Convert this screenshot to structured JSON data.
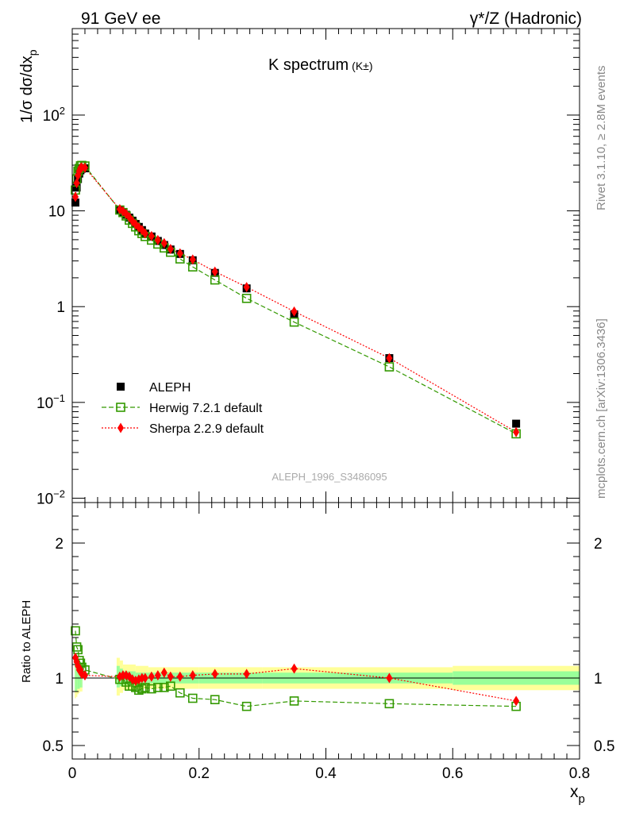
{
  "header": {
    "left": "91 GeV ee",
    "right": "γ*/Z (Hadronic)"
  },
  "title": {
    "main": "K spectrum",
    "sub": "(K±)"
  },
  "y_label_main": "1/σ dσ/dx",
  "y_label_main_sub": "p",
  "y_label_ratio": "Ratio to ALEPH",
  "x_label": "x",
  "x_label_sub": "p",
  "side_label_top": "Rivet 3.1.10, ≥ 2.8M events",
  "side_label_bottom": "mcplots.cern.ch [arXiv:1306.3436]",
  "analysis_tag": "ALEPH_1996_S3486095",
  "legend": [
    {
      "label": "ALEPH",
      "marker": "square-filled",
      "color": "#000000"
    },
    {
      "label": "Herwig 7.2.1 default",
      "marker": "square-open",
      "color": "#339900"
    },
    {
      "label": "Sherpa 2.2.9 default",
      "marker": "diamond-filled",
      "color": "#ff0000"
    }
  ],
  "main_y_ticks": [
    {
      "value": 0.01,
      "label": "10",
      "exp": "−2"
    },
    {
      "value": 0.1,
      "label": "10",
      "exp": "−1"
    },
    {
      "value": 1,
      "label": "1",
      "exp": ""
    },
    {
      "value": 10,
      "label": "10",
      "exp": ""
    },
    {
      "value": 100,
      "label": "10",
      "exp": "2"
    }
  ],
  "ratio_y_ticks": [
    {
      "value": 0.5,
      "label": "0.5"
    },
    {
      "value": 1,
      "label": "1"
    },
    {
      "value": 2,
      "label": "2"
    }
  ],
  "x_ticks": [
    {
      "value": 0,
      "label": "0"
    },
    {
      "value": 0.2,
      "label": "0.2"
    },
    {
      "value": 0.4,
      "label": "0.4"
    },
    {
      "value": 0.6,
      "label": "0.6"
    },
    {
      "value": 0.8,
      "label": "0.8"
    }
  ],
  "chart_data": {
    "type": "scatter",
    "x_scale": "linear",
    "y_scale": "log",
    "xlim": [
      0,
      0.8
    ],
    "ylim": [
      0.009,
      800
    ],
    "ratio_ylim": [
      0.4,
      2.3
    ],
    "colors": {
      "data": "#000000",
      "herwig": "#339900",
      "sherpa": "#ff0000",
      "band_inner": "#99ff99",
      "band_outer": "#ffff99"
    },
    "series": [
      {
        "name": "ALEPH",
        "x": [
          0.005,
          0.007,
          0.009,
          0.011,
          0.013,
          0.015,
          0.02,
          0.075,
          0.08,
          0.085,
          0.09,
          0.095,
          0.1,
          0.105,
          0.11,
          0.115,
          0.125,
          0.135,
          0.145,
          0.155,
          0.17,
          0.19,
          0.225,
          0.275,
          0.35,
          0.5,
          0.7
        ],
        "y": [
          12.2,
          17.5,
          21.5,
          24.5,
          26.5,
          27.5,
          27.8,
          10.3,
          9.7,
          9.1,
          8.5,
          7.9,
          7.3,
          6.8,
          6.3,
          5.8,
          5.4,
          4.85,
          4.4,
          3.95,
          3.55,
          3.05,
          2.25,
          1.55,
          0.83,
          0.29,
          0.06
        ]
      },
      {
        "name": "Herwig 7.2.1 default",
        "x": [
          0.005,
          0.007,
          0.009,
          0.011,
          0.013,
          0.015,
          0.02,
          0.075,
          0.08,
          0.085,
          0.09,
          0.095,
          0.1,
          0.105,
          0.11,
          0.115,
          0.125,
          0.135,
          0.145,
          0.155,
          0.17,
          0.19,
          0.225,
          0.275,
          0.35,
          0.5,
          0.7
        ],
        "y": [
          16.5,
          21.6,
          26.0,
          27.7,
          29.5,
          29.8,
          29.4,
          10.2,
          9.6,
          8.85,
          8.0,
          7.4,
          6.8,
          6.2,
          5.8,
          5.4,
          4.95,
          4.5,
          4.1,
          3.7,
          3.15,
          2.6,
          1.9,
          1.22,
          0.69,
          0.235,
          0.047
        ]
      },
      {
        "name": "Sherpa 2.2.9 default",
        "x": [
          0.005,
          0.007,
          0.009,
          0.011,
          0.013,
          0.015,
          0.02,
          0.075,
          0.08,
          0.085,
          0.09,
          0.095,
          0.1,
          0.105,
          0.11,
          0.115,
          0.125,
          0.135,
          0.145,
          0.155,
          0.17,
          0.19,
          0.225,
          0.275,
          0.35,
          0.5,
          0.7
        ],
        "y": [
          14.0,
          19.5,
          23.4,
          26.0,
          28.0,
          28.4,
          28.2,
          10.4,
          9.9,
          9.3,
          8.6,
          7.8,
          7.2,
          6.7,
          6.3,
          5.8,
          5.45,
          4.95,
          4.6,
          4.0,
          3.6,
          3.1,
          2.32,
          1.6,
          0.89,
          0.29,
          0.049
        ]
      }
    ],
    "ratio": [
      {
        "name": "Herwig 7.2.1 default",
        "x": [
          0.005,
          0.007,
          0.009,
          0.011,
          0.013,
          0.015,
          0.02,
          0.075,
          0.08,
          0.085,
          0.09,
          0.095,
          0.1,
          0.105,
          0.11,
          0.115,
          0.125,
          0.135,
          0.145,
          0.155,
          0.17,
          0.19,
          0.225,
          0.275,
          0.35,
          0.5,
          0.7
        ],
        "y": [
          1.35,
          1.23,
          1.21,
          1.13,
          1.11,
          1.08,
          1.06,
          0.99,
          0.99,
          0.97,
          0.94,
          0.94,
          0.93,
          0.91,
          0.92,
          0.93,
          0.92,
          0.93,
          0.93,
          0.94,
          0.89,
          0.85,
          0.84,
          0.79,
          0.83,
          0.81,
          0.79
        ]
      },
      {
        "name": "Sherpa 2.2.9 default",
        "x": [
          0.005,
          0.007,
          0.009,
          0.011,
          0.013,
          0.015,
          0.02,
          0.075,
          0.08,
          0.085,
          0.09,
          0.095,
          0.1,
          0.105,
          0.11,
          0.115,
          0.125,
          0.135,
          0.145,
          0.155,
          0.17,
          0.19,
          0.225,
          0.275,
          0.35,
          0.5,
          0.7
        ],
        "y": [
          1.15,
          1.12,
          1.09,
          1.06,
          1.06,
          1.03,
          1.02,
          1.01,
          1.02,
          1.02,
          1.01,
          0.99,
          0.98,
          0.99,
          1.0,
          1.0,
          1.01,
          1.02,
          1.04,
          1.01,
          1.01,
          1.02,
          1.03,
          1.03,
          1.07,
          1.0,
          0.83
        ]
      }
    ],
    "bands": {
      "x_edges": [
        0.004,
        0.006,
        0.008,
        0.01,
        0.012,
        0.014,
        0.016,
        0.07,
        0.075,
        0.08,
        0.1,
        0.12,
        0.15,
        0.2,
        0.3,
        0.4,
        0.6,
        0.8
      ],
      "inner_lo": [
        0.9,
        0.9,
        0.92,
        0.92,
        0.93,
        0.93,
        1.0,
        0.93,
        0.94,
        0.95,
        0.96,
        0.96,
        0.96,
        0.96,
        0.96,
        0.96,
        0.95
      ],
      "inner_hi": [
        1.1,
        1.1,
        1.09,
        1.08,
        1.07,
        1.07,
        1.0,
        1.09,
        1.07,
        1.05,
        1.04,
        1.04,
        1.04,
        1.04,
        1.04,
        1.04,
        1.05
      ],
      "outer_lo": [
        0.85,
        0.86,
        0.88,
        0.89,
        0.9,
        0.9,
        1.0,
        0.87,
        0.89,
        0.91,
        0.92,
        0.92,
        0.92,
        0.92,
        0.92,
        0.92,
        0.91
      ],
      "outer_hi": [
        1.15,
        1.14,
        1.13,
        1.12,
        1.11,
        1.1,
        1.0,
        1.15,
        1.13,
        1.1,
        1.09,
        1.08,
        1.08,
        1.08,
        1.08,
        1.08,
        1.09
      ]
    }
  }
}
